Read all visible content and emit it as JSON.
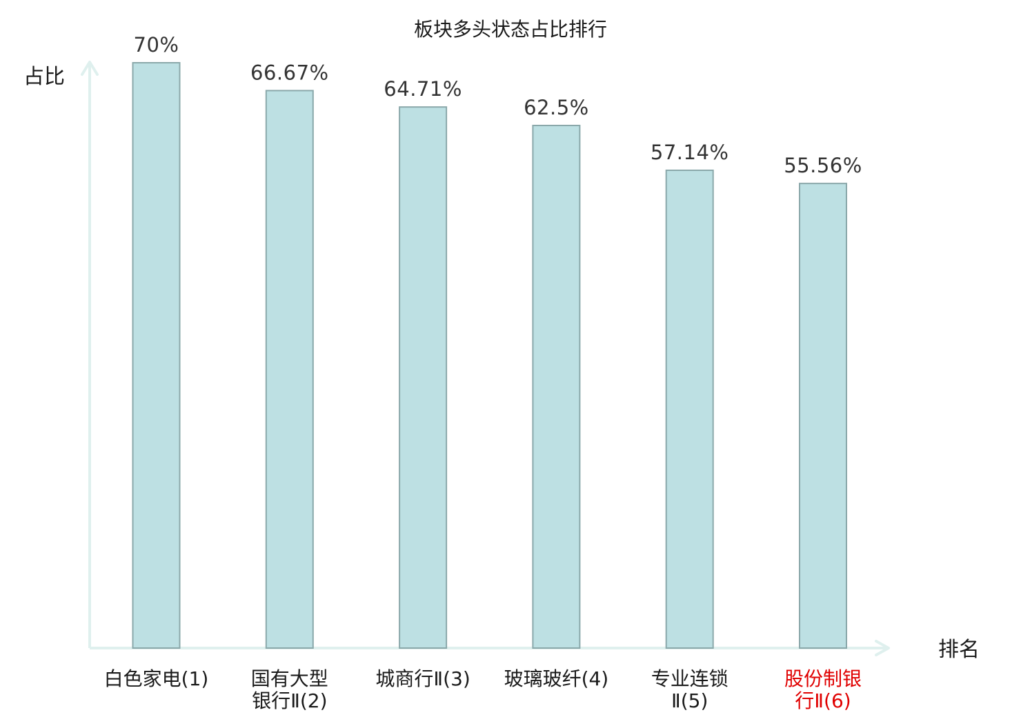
{
  "chart_data": {
    "type": "bar",
    "title": "板块多头状态占比排行",
    "ylabel": "占比",
    "xlabel": "排名",
    "ylim": [
      0,
      100
    ],
    "grid": false,
    "legend": "none",
    "categories": [
      [
        "白色家电(1)"
      ],
      [
        "国有大型",
        "银行Ⅱ(2)"
      ],
      [
        "城商行Ⅱ(3)"
      ],
      [
        "玻璃玻纤(4)"
      ],
      [
        "专业连锁",
        "Ⅱ(5)"
      ],
      [
        "股份制银",
        "行Ⅱ(6)"
      ]
    ],
    "values": [
      70,
      66.67,
      64.71,
      62.5,
      57.14,
      55.56
    ],
    "value_labels": [
      "70%",
      "66.67%",
      "64.71%",
      "62.5%",
      "57.14%",
      "55.56%"
    ],
    "highlight_index": 5,
    "colors": {
      "bar_fill": "#bde0e3",
      "bar_stroke": "#8aa8aa",
      "axis": "#dff0ee",
      "label": "#1a1a1a",
      "highlight_label": "#e00000"
    }
  }
}
